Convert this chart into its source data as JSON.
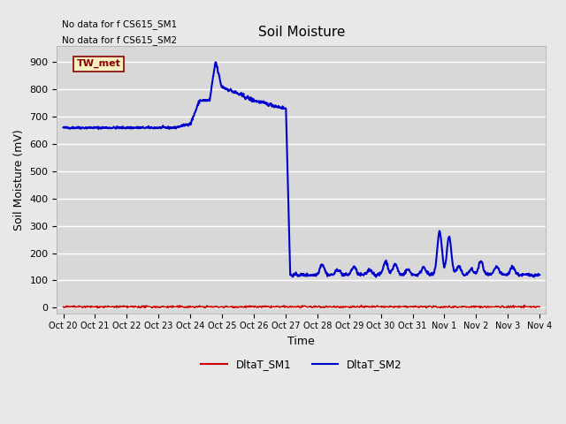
{
  "title": "Soil Moisture",
  "xlabel": "Time",
  "ylabel": "Soil Moisture (mV)",
  "ylim": [
    -20,
    960
  ],
  "yticks": [
    0,
    100,
    200,
    300,
    400,
    500,
    600,
    700,
    800,
    900
  ],
  "annotations": [
    "No data for f CS615_SM1",
    "No data for f CS615_SM2"
  ],
  "box_label": "TW_met",
  "legend_entries": [
    "DltaT_SM1",
    "DltaT_SM2"
  ],
  "legend_colors": [
    "#cc0000",
    "#0000cc"
  ],
  "bg_color": "#e8e8e8",
  "plot_bg": "#d8d8d8",
  "grid_color": "#ffffff",
  "x_tick_labels": [
    "Oct 20",
    "Oct 21",
    "Oct 22",
    "Oct 23",
    "Oct 24",
    "Oct 25",
    "Oct 26",
    "Oct 27",
    "Oct 28",
    "Oct 29",
    "Oct 30",
    "Oct 31",
    "Nov 1",
    "Nov 2",
    "Nov 3",
    "Nov 4"
  ],
  "sm2_color": "#0000cc",
  "sm1_color": "#cc0000"
}
